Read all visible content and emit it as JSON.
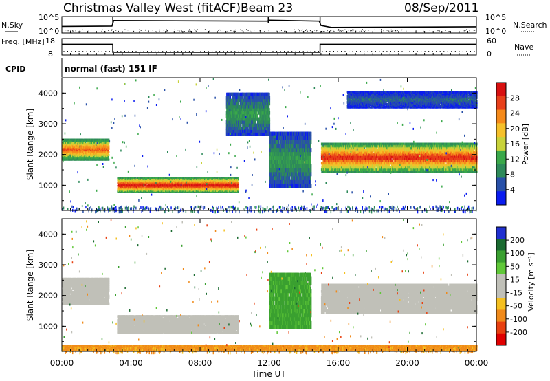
{
  "header": {
    "station": "Christmas Valley West (fitACF)",
    "beam": "Beam 23",
    "date": "08/Sep/2011"
  },
  "colors": {
    "noise_line": "#000000",
    "power_scale": [
      "#0a1cf0",
      "#2850a8",
      "#2e8a5a",
      "#3aa84a",
      "#c8d23a",
      "#f5c02a",
      "#f58a1a",
      "#e8401a",
      "#d81010"
    ],
    "velocity_scale": [
      "#2030d0",
      "#1a6a30",
      "#3aa030",
      "#60c838",
      "#c0c0b8",
      "#c0c0b8",
      "#f5c020",
      "#f08a1a",
      "#e84010",
      "#e00000"
    ]
  },
  "chart_data": [
    {
      "type": "line",
      "panel": "noise",
      "left_label": "N.Sky",
      "right_label": "N.Search",
      "left_ticks": [
        "10^5",
        "10^0"
      ],
      "right_ticks": [
        "10^5",
        "10^0"
      ],
      "x_range_hours": [
        0,
        24
      ],
      "series": [
        {
          "x": [
            0,
            2.9,
            3.0,
            11.9,
            12.0,
            14.9,
            15.0,
            15.6,
            24
          ],
          "y": [
            2.0,
            2.1,
            3.8,
            3.6,
            3.9,
            3.6,
            2.3,
            1.7,
            1.9
          ]
        }
      ]
    },
    {
      "type": "line",
      "panel": "frequency",
      "left_label": "Freq. [MHz]",
      "right_label": "Nave",
      "left_ticks": [
        "18",
        "8"
      ],
      "right_ticks": [
        "60",
        "0"
      ],
      "x_range_hours": [
        0,
        24
      ],
      "series": [
        {
          "x": [
            0,
            2.95,
            2.95,
            14.95,
            14.95,
            24
          ],
          "y": [
            14.5,
            14.5,
            9.7,
            9.7,
            14.5,
            14.5
          ]
        }
      ]
    },
    {
      "type": "table",
      "panel": "cpid",
      "label": "CPID",
      "value": "normal (fast) 151 IF"
    },
    {
      "type": "heatmap",
      "panel": "power",
      "ylabel": "Slant Range [km]",
      "xlabel": "",
      "colorbar_label": "Power [dB]",
      "colorbar_ticks": [
        "28",
        "24",
        "20",
        "16",
        "12",
        "8",
        "4"
      ],
      "ylim": [
        180,
        4500
      ],
      "yticks": [
        "4000",
        "3000",
        "2000",
        "1000"
      ],
      "x_range_hours": [
        0,
        24
      ],
      "features": [
        {
          "name": "early evening band",
          "x": [
            0,
            2.7
          ],
          "range_km": [
            1800,
            2450
          ],
          "peak_db": 24
        },
        {
          "name": "near-range slab",
          "x": [
            3.2,
            10.2
          ],
          "range_km": [
            750,
            1200
          ],
          "peak_db": 28
        },
        {
          "name": "arc to 12:00",
          "x": [
            9.5,
            12.0
          ],
          "range_km": [
            2600,
            3900
          ],
          "peak_db": 10
        },
        {
          "name": "descending trail",
          "x": [
            12.0,
            14.4
          ],
          "range_km": [
            900,
            2600
          ],
          "peak_db": 10
        },
        {
          "name": "late band",
          "x": [
            15.0,
            24.0
          ],
          "range_km": [
            1400,
            2300
          ],
          "peak_db": 26
        },
        {
          "name": "high range patches",
          "x": [
            16.5,
            24.0
          ],
          "range_km": [
            3500,
            4000
          ],
          "peak_db": 6
        }
      ]
    },
    {
      "type": "heatmap",
      "panel": "velocity",
      "ylabel": "Slant Range [km]",
      "xlabel": "Time UT",
      "colorbar_label": "Velocity [m s⁻¹]",
      "colorbar_ticks": [
        "200",
        "100",
        "50",
        "15",
        "-15",
        "-50",
        "-100",
        "-200"
      ],
      "ylim": [
        180,
        4500
      ],
      "yticks": [
        "4000",
        "3000",
        "2000",
        "1000"
      ],
      "x_range_hours": [
        0,
        24
      ],
      "xticks": [
        "00:00",
        "04:00",
        "08:00",
        "12:00",
        "16:00",
        "20:00",
        "00:00"
      ],
      "features": [
        {
          "name": "early evening band",
          "x": [
            0,
            2.7
          ],
          "range_km": [
            1700,
            2500
          ],
          "velocity": 0
        },
        {
          "name": "near-range slab",
          "x": [
            3.2,
            10.2
          ],
          "range_km": [
            750,
            1300
          ],
          "velocity": 0
        },
        {
          "name": "ground scatter floor",
          "x": [
            0,
            24
          ],
          "range_km": [
            180,
            350
          ],
          "velocity": -60
        },
        {
          "name": "descending trail",
          "x": [
            12.0,
            14.4
          ],
          "range_km": [
            900,
            2600
          ],
          "velocity": 60
        },
        {
          "name": "late band",
          "x": [
            15.0,
            24.0
          ],
          "range_km": [
            1400,
            2300
          ],
          "velocity": 0
        }
      ]
    }
  ]
}
